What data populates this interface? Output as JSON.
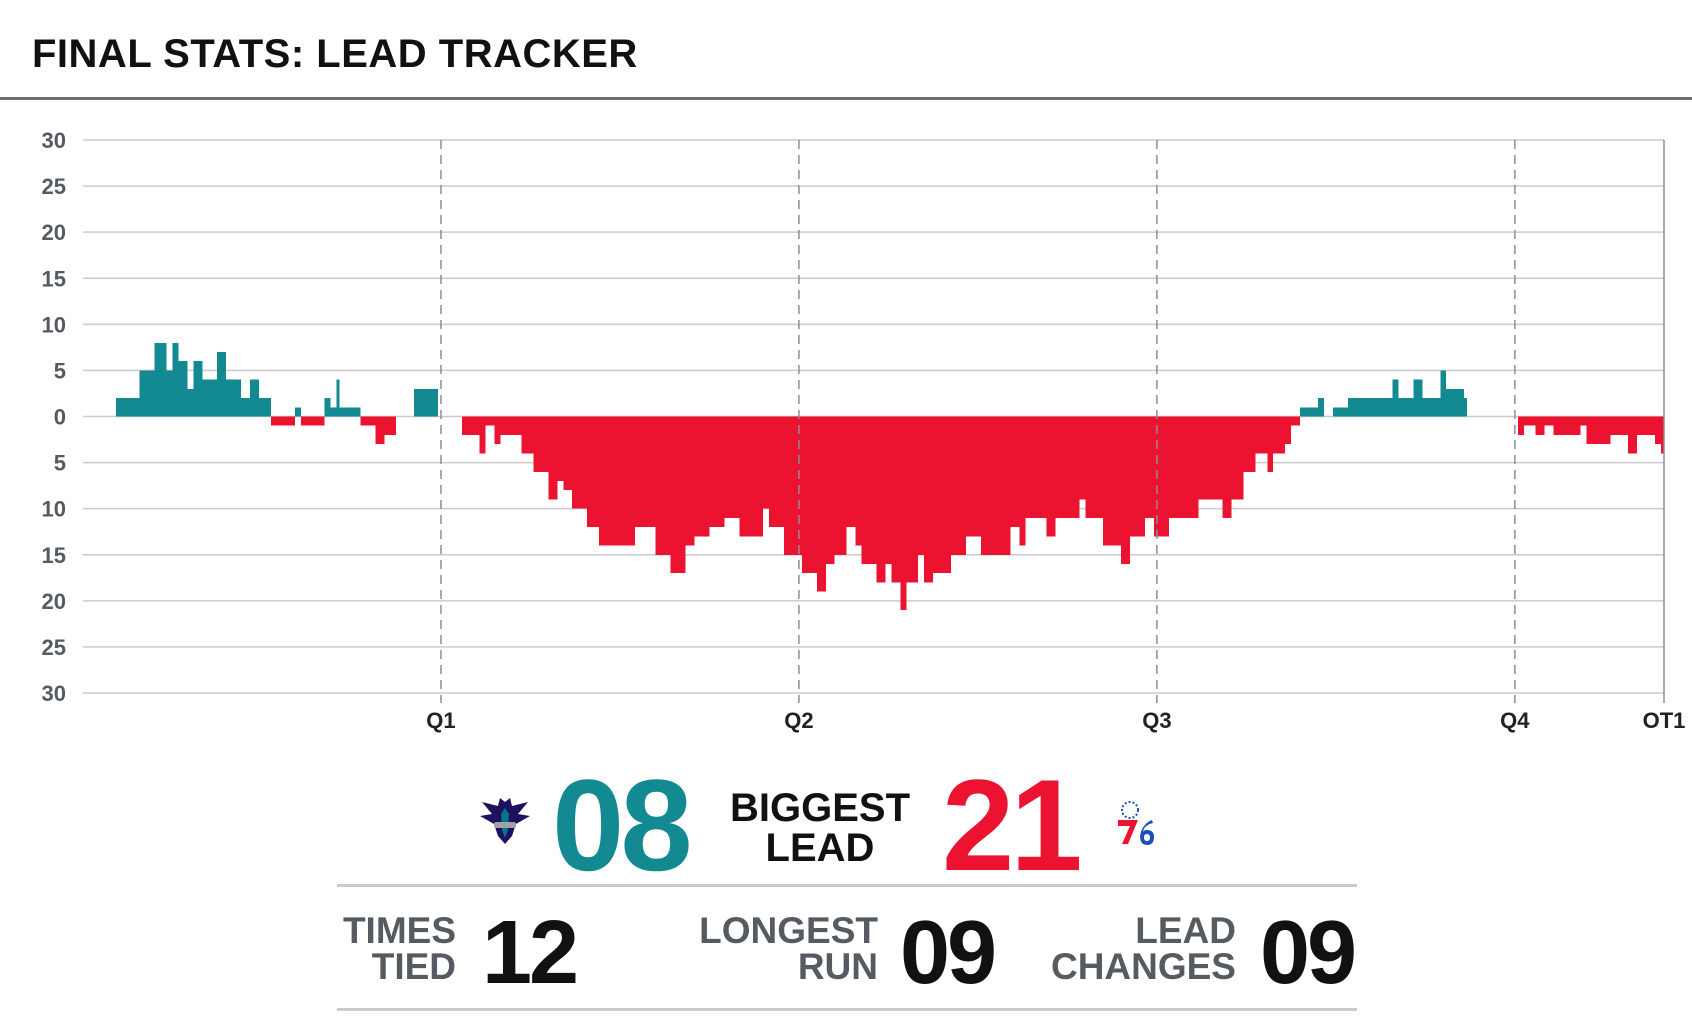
{
  "title": "FINAL STATS: LEAD TRACKER",
  "colors": {
    "home": "#138a91",
    "away": "#ec1330",
    "grid": "#c9cbcd",
    "axis_text": "#555b61"
  },
  "chart_data": {
    "type": "bar",
    "title": "FINAL STATS: LEAD TRACKER",
    "xlabel": "",
    "ylabel": "",
    "ylim": [
      -30,
      30
    ],
    "y_ticks": [
      30,
      25,
      20,
      15,
      10,
      5,
      0,
      -5,
      -10,
      -15,
      -20,
      -25,
      -30
    ],
    "y_tick_labels": [
      "30",
      "25",
      "20",
      "15",
      "10",
      "5",
      "0",
      "5",
      "10",
      "15",
      "20",
      "25",
      "30"
    ],
    "x_unit": "game minutes",
    "x_range": [
      0,
      53
    ],
    "period_ticks": [
      {
        "label": "Q1",
        "x": 12
      },
      {
        "label": "Q2",
        "x": 24
      },
      {
        "label": "Q3",
        "x": 36
      },
      {
        "label": "Q4",
        "x": 48
      },
      {
        "label": "OT1",
        "x": 53
      }
    ],
    "grid": true,
    "series": [
      {
        "team": "home",
        "logo_icon": "hornets-logo-icon",
        "color": "#138a91"
      },
      {
        "team": "away",
        "logo_icon": "76ers-logo-icon",
        "color": "#ec1330"
      }
    ],
    "lead_segments": [
      [
        1.1,
        1.9,
        2
      ],
      [
        1.9,
        2.4,
        5
      ],
      [
        2.4,
        2.8,
        8
      ],
      [
        2.8,
        3.0,
        5
      ],
      [
        3.0,
        3.2,
        8
      ],
      [
        3.2,
        3.5,
        6
      ],
      [
        3.5,
        3.7,
        3
      ],
      [
        3.7,
        4.0,
        6
      ],
      [
        4.0,
        4.5,
        4
      ],
      [
        4.5,
        4.8,
        7
      ],
      [
        4.8,
        5.3,
        4
      ],
      [
        5.3,
        5.6,
        2
      ],
      [
        5.6,
        5.9,
        4
      ],
      [
        5.9,
        6.3,
        2
      ],
      [
        6.3,
        7.1,
        -1
      ],
      [
        7.1,
        7.3,
        1
      ],
      [
        7.3,
        8.1,
        -1
      ],
      [
        8.1,
        8.3,
        2
      ],
      [
        8.3,
        8.5,
        1
      ],
      [
        8.5,
        8.6,
        4
      ],
      [
        8.6,
        9.3,
        1
      ],
      [
        9.3,
        9.8,
        -1
      ],
      [
        9.8,
        10.1,
        -3
      ],
      [
        10.1,
        10.5,
        -2
      ],
      [
        11.1,
        11.9,
        3
      ],
      [
        12.7,
        13.3,
        -2
      ],
      [
        13.3,
        13.5,
        -4
      ],
      [
        13.5,
        13.8,
        -1
      ],
      [
        13.8,
        14.0,
        -3
      ],
      [
        14.0,
        14.7,
        -2
      ],
      [
        14.7,
        15.1,
        -4
      ],
      [
        15.1,
        15.6,
        -6
      ],
      [
        15.6,
        15.9,
        -9
      ],
      [
        15.9,
        16.1,
        -7
      ],
      [
        16.1,
        16.4,
        -8
      ],
      [
        16.4,
        16.9,
        -10
      ],
      [
        16.9,
        17.3,
        -12
      ],
      [
        17.3,
        18.0,
        -14
      ],
      [
        18.0,
        18.5,
        -14
      ],
      [
        18.5,
        19.2,
        -12
      ],
      [
        19.2,
        19.7,
        -15
      ],
      [
        19.7,
        20.2,
        -17
      ],
      [
        20.2,
        20.5,
        -14
      ],
      [
        20.5,
        21.0,
        -13
      ],
      [
        21.0,
        21.5,
        -12
      ],
      [
        21.5,
        22.0,
        -11
      ],
      [
        22.0,
        22.8,
        -13
      ],
      [
        22.8,
        23.0,
        -10
      ],
      [
        23.0,
        23.5,
        -12
      ],
      [
        23.5,
        24.1,
        -15
      ],
      [
        24.1,
        24.6,
        -17
      ],
      [
        24.6,
        24.9,
        -19
      ],
      [
        24.9,
        25.2,
        -16
      ],
      [
        25.2,
        25.6,
        -15
      ],
      [
        25.6,
        25.9,
        -12
      ],
      [
        25.9,
        26.1,
        -14
      ],
      [
        26.1,
        26.6,
        -16
      ],
      [
        26.6,
        26.9,
        -18
      ],
      [
        26.9,
        27.1,
        -16
      ],
      [
        27.1,
        27.4,
        -18
      ],
      [
        27.4,
        27.6,
        -21
      ],
      [
        27.6,
        28.0,
        -18
      ],
      [
        28.0,
        28.2,
        -15
      ],
      [
        28.2,
        28.5,
        -18
      ],
      [
        28.5,
        29.1,
        -17
      ],
      [
        29.1,
        29.6,
        -15
      ],
      [
        29.6,
        30.1,
        -13
      ],
      [
        30.1,
        30.6,
        -15
      ],
      [
        30.6,
        31.1,
        -15
      ],
      [
        31.1,
        31.4,
        -12
      ],
      [
        31.4,
        31.6,
        -14
      ],
      [
        31.6,
        32.3,
        -11
      ],
      [
        32.3,
        32.6,
        -13
      ],
      [
        32.6,
        33.4,
        -11
      ],
      [
        33.4,
        33.6,
        -9
      ],
      [
        33.6,
        34.2,
        -11
      ],
      [
        34.2,
        34.8,
        -14
      ],
      [
        34.8,
        35.1,
        -16
      ],
      [
        35.1,
        35.6,
        -13
      ],
      [
        35.6,
        35.9,
        -11
      ],
      [
        35.9,
        36.4,
        -13
      ],
      [
        36.4,
        36.7,
        -11
      ],
      [
        36.7,
        37.4,
        -11
      ],
      [
        37.4,
        38.2,
        -9
      ],
      [
        38.2,
        38.5,
        -11
      ],
      [
        38.5,
        38.9,
        -9
      ],
      [
        38.9,
        39.3,
        -6
      ],
      [
        39.3,
        39.7,
        -4
      ],
      [
        39.7,
        39.9,
        -6
      ],
      [
        39.9,
        40.3,
        -4
      ],
      [
        40.3,
        40.5,
        -3
      ],
      [
        40.5,
        40.8,
        -1
      ],
      [
        40.8,
        41.4,
        1
      ],
      [
        41.4,
        41.6,
        2
      ],
      [
        41.6,
        41.9,
        0
      ],
      [
        41.9,
        42.4,
        1
      ],
      [
        42.4,
        43.1,
        2
      ],
      [
        43.1,
        43.9,
        2
      ],
      [
        43.9,
        44.1,
        4
      ],
      [
        44.1,
        44.6,
        2
      ],
      [
        44.6,
        44.9,
        4
      ],
      [
        44.9,
        45.5,
        2
      ],
      [
        45.5,
        45.7,
        5
      ],
      [
        45.7,
        46.3,
        3
      ],
      [
        46.3,
        46.4,
        2
      ],
      [
        48.1,
        48.3,
        -2
      ],
      [
        48.3,
        48.7,
        -1
      ],
      [
        48.7,
        49.0,
        -2
      ],
      [
        49.0,
        49.3,
        -1
      ],
      [
        49.3,
        50.2,
        -2
      ],
      [
        50.2,
        50.4,
        -1
      ],
      [
        50.4,
        51.2,
        -3
      ],
      [
        51.2,
        51.8,
        -2
      ],
      [
        51.8,
        52.1,
        -4
      ],
      [
        52.1,
        52.7,
        -2
      ],
      [
        52.7,
        52.9,
        -3
      ],
      [
        52.9,
        53.0,
        -4
      ]
    ]
  },
  "biggest_lead": {
    "label_line1": "BIGGEST",
    "label_line2": "LEAD",
    "home": "08",
    "away": "21"
  },
  "stats": [
    {
      "label_line1": "TIMES",
      "label_line2": "TIED",
      "value": "12"
    },
    {
      "label_line1": "LONGEST",
      "label_line2": "RUN",
      "value": "09"
    },
    {
      "label_line1": "LEAD",
      "label_line2": "CHANGES",
      "value": "09"
    }
  ]
}
